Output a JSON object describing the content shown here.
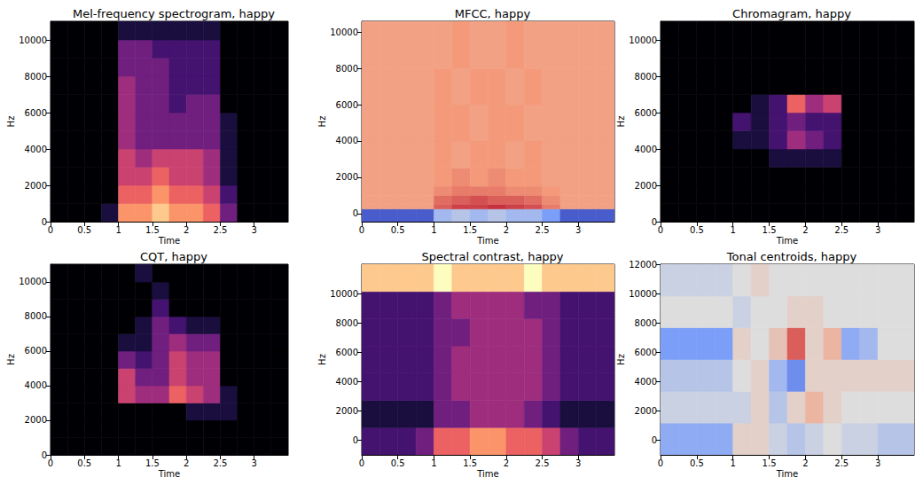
{
  "chart_data": [
    {
      "type": "heatmap",
      "title": "Mel-frequency spectrogram, happy",
      "x_label": "Time",
      "y_label": "Hz",
      "color": "magma",
      "xlim": [
        0,
        3.5
      ],
      "ylim": [
        0,
        11025
      ],
      "xticks": [
        0,
        0.5,
        1,
        1.5,
        2,
        2.5,
        3
      ],
      "yticks": [
        0,
        2000,
        4000,
        6000,
        8000,
        10000
      ],
      "value_range": [
        0,
        9
      ],
      "x_bins": [
        0,
        0.25,
        0.5,
        0.75,
        1,
        1.25,
        1.5,
        1.75,
        2,
        2.25,
        2.5,
        2.75,
        3,
        3.25,
        3.5
      ],
      "y_bins": [
        0,
        1000,
        2000,
        3000,
        4000,
        5000,
        6000,
        7000,
        8000,
        9000,
        10000,
        11025
      ],
      "cells": [
        [
          0,
          0,
          0,
          1,
          7,
          7,
          8,
          7,
          7,
          6,
          3,
          0,
          0,
          0
        ],
        [
          0,
          0,
          0,
          0,
          6,
          6,
          7,
          6,
          6,
          5,
          2,
          0,
          0,
          0
        ],
        [
          0,
          0,
          0,
          0,
          5,
          5,
          6,
          5,
          5,
          4,
          1,
          0,
          0,
          0
        ],
        [
          0,
          0,
          0,
          0,
          5,
          4,
          5,
          5,
          5,
          4,
          1,
          0,
          0,
          0
        ],
        [
          0,
          0,
          0,
          0,
          4,
          3,
          3,
          3,
          3,
          3,
          1,
          0,
          0,
          0
        ],
        [
          0,
          0,
          0,
          0,
          4,
          3,
          3,
          3,
          3,
          3,
          1,
          0,
          0,
          0
        ],
        [
          0,
          0,
          0,
          0,
          4,
          3,
          3,
          2,
          3,
          3,
          0,
          0,
          0,
          0
        ],
        [
          0,
          0,
          0,
          0,
          4,
          3,
          3,
          2,
          2,
          2,
          0,
          0,
          0,
          0
        ],
        [
          0,
          0,
          0,
          0,
          3,
          3,
          3,
          2,
          2,
          2,
          0,
          0,
          0,
          0
        ],
        [
          0,
          0,
          0,
          0,
          3,
          3,
          2,
          2,
          2,
          2,
          0,
          0,
          0,
          0
        ],
        [
          0,
          0,
          0,
          0,
          1,
          1,
          1,
          1,
          1,
          1,
          0,
          0,
          0,
          0
        ]
      ]
    },
    {
      "type": "heatmap",
      "title": "MFCC, happy",
      "x_label": "Time",
      "y_label": "Hz",
      "color": "coolwarm",
      "xlim": [
        0,
        3.5
      ],
      "ylim": [
        -450,
        10600
      ],
      "xticks": [
        0,
        0.5,
        1,
        1.5,
        2,
        2.5,
        3
      ],
      "yticks": [
        0,
        2000,
        4000,
        6000,
        8000,
        10000
      ],
      "value_range": [
        -1,
        1
      ],
      "x_bins": [
        0,
        0.25,
        0.5,
        0.75,
        1,
        1.25,
        1.5,
        1.75,
        2,
        2.25,
        2.5,
        2.75,
        3,
        3.25,
        3.5
      ],
      "y_bins": [
        -450,
        250,
        500,
        1000,
        1500,
        2500,
        4000,
        6000,
        8000,
        10600
      ],
      "cells": [
        [
          -0.9,
          -0.9,
          -0.9,
          -0.9,
          -0.3,
          -0.2,
          -0.3,
          -0.2,
          -0.3,
          -0.3,
          -0.5,
          -0.9,
          -0.9,
          -0.9
        ],
        [
          0.45,
          0.45,
          0.45,
          0.45,
          0.7,
          0.8,
          0.8,
          0.85,
          0.8,
          0.75,
          0.6,
          0.45,
          0.45,
          0.45
        ],
        [
          0.45,
          0.45,
          0.45,
          0.45,
          0.65,
          0.7,
          0.75,
          0.7,
          0.7,
          0.65,
          0.55,
          0.45,
          0.45,
          0.45
        ],
        [
          0.45,
          0.45,
          0.45,
          0.45,
          0.55,
          0.6,
          0.6,
          0.6,
          0.55,
          0.55,
          0.5,
          0.45,
          0.45,
          0.45
        ],
        [
          0.45,
          0.45,
          0.45,
          0.45,
          0.5,
          0.55,
          0.5,
          0.55,
          0.5,
          0.5,
          0.45,
          0.45,
          0.45,
          0.45
        ],
        [
          0.45,
          0.45,
          0.45,
          0.45,
          0.5,
          0.45,
          0.5,
          0.5,
          0.45,
          0.5,
          0.45,
          0.45,
          0.45,
          0.45
        ],
        [
          0.45,
          0.45,
          0.45,
          0.45,
          0.5,
          0.5,
          0.45,
          0.5,
          0.5,
          0.45,
          0.45,
          0.45,
          0.45,
          0.45
        ],
        [
          0.45,
          0.45,
          0.45,
          0.45,
          0.5,
          0.45,
          0.5,
          0.5,
          0.45,
          0.5,
          0.45,
          0.45,
          0.45,
          0.45
        ],
        [
          0.45,
          0.45,
          0.45,
          0.45,
          0.45,
          0.5,
          0.45,
          0.45,
          0.5,
          0.45,
          0.45,
          0.45,
          0.45,
          0.45
        ]
      ]
    },
    {
      "type": "heatmap",
      "title": "Chromagram, happy",
      "x_label": "Time",
      "y_label": "Hz",
      "color": "magma",
      "xlim": [
        0,
        3.5
      ],
      "ylim": [
        0,
        11025
      ],
      "xticks": [
        0,
        0.5,
        1,
        1.5,
        2,
        2.5,
        3
      ],
      "yticks": [
        0,
        2000,
        4000,
        6000,
        8000,
        10000
      ],
      "value_range": [
        0,
        9
      ],
      "x_bins": [
        0,
        0.25,
        0.5,
        0.75,
        1,
        1.25,
        1.5,
        1.75,
        2,
        2.25,
        2.5,
        2.75,
        3,
        3.25,
        3.5
      ],
      "y_bins": [
        0,
        1000,
        2000,
        3000,
        4000,
        5000,
        6000,
        7000,
        8000,
        9000,
        10000,
        11025
      ],
      "cells": [
        [
          0,
          0,
          0,
          0,
          0,
          0,
          0,
          0,
          0,
          0,
          0,
          0,
          0,
          0
        ],
        [
          0,
          0,
          0,
          0,
          0,
          0,
          0,
          0,
          0,
          0,
          0,
          0,
          0,
          0
        ],
        [
          0,
          0,
          0,
          0,
          0,
          0,
          0,
          0,
          0,
          0,
          0,
          0,
          0,
          0
        ],
        [
          0,
          0,
          0,
          0,
          0,
          0,
          1,
          1,
          1,
          1,
          0,
          0,
          0,
          0
        ],
        [
          0,
          0,
          0,
          0,
          1,
          1,
          2,
          4,
          3,
          2,
          0,
          0,
          0,
          0
        ],
        [
          0,
          0,
          0,
          0,
          2,
          1,
          2,
          3,
          2,
          2,
          0,
          0,
          0,
          0
        ],
        [
          0,
          0,
          0,
          0,
          0,
          1,
          2,
          6,
          4,
          5,
          0,
          0,
          0,
          0
        ],
        [
          0,
          0,
          0,
          0,
          0,
          0,
          0,
          0,
          0,
          0,
          0,
          0,
          0,
          0
        ],
        [
          0,
          0,
          0,
          0,
          0,
          0,
          0,
          0,
          0,
          0,
          0,
          0,
          0,
          0
        ],
        [
          0,
          0,
          0,
          0,
          0,
          0,
          0,
          0,
          0,
          0,
          0,
          0,
          0,
          0
        ],
        [
          0,
          0,
          0,
          0,
          0,
          0,
          0,
          0,
          0,
          0,
          0,
          0,
          0,
          0
        ]
      ]
    },
    {
      "type": "heatmap",
      "title": "CQT, happy",
      "x_label": "Time",
      "y_label": "Hz",
      "color": "magma",
      "xlim": [
        0,
        3.5
      ],
      "ylim": [
        0,
        11025
      ],
      "xticks": [
        0,
        0.5,
        1,
        1.5,
        2,
        2.5,
        3
      ],
      "yticks": [
        0,
        2000,
        4000,
        6000,
        8000,
        10000
      ],
      "value_range": [
        0,
        9
      ],
      "x_bins": [
        0,
        0.25,
        0.5,
        0.75,
        1,
        1.25,
        1.5,
        1.75,
        2,
        2.25,
        2.5,
        2.75,
        3,
        3.25,
        3.5
      ],
      "y_bins": [
        0,
        1000,
        2000,
        3000,
        4000,
        5000,
        6000,
        7000,
        8000,
        9000,
        10000,
        11025
      ],
      "cells": [
        [
          0,
          0,
          0,
          0,
          0,
          0,
          0,
          0,
          0,
          0,
          0,
          0,
          0,
          0
        ],
        [
          0,
          0,
          0,
          0,
          0,
          0,
          0,
          0,
          0,
          0,
          0,
          0,
          0,
          0
        ],
        [
          0,
          0,
          0,
          0,
          0,
          0,
          0,
          0,
          1,
          1,
          1,
          0,
          0,
          0
        ],
        [
          0,
          0,
          0,
          0,
          5,
          4,
          4,
          6,
          5,
          4,
          1,
          0,
          0,
          0
        ],
        [
          0,
          0,
          0,
          0,
          5,
          3,
          3,
          5,
          4,
          4,
          0,
          0,
          0,
          0
        ],
        [
          0,
          0,
          0,
          0,
          3,
          2,
          3,
          5,
          4,
          4,
          0,
          0,
          0,
          0
        ],
        [
          0,
          0,
          0,
          0,
          1,
          1,
          3,
          4,
          3,
          3,
          0,
          0,
          0,
          0
        ],
        [
          0,
          0,
          0,
          0,
          0,
          1,
          3,
          2,
          1,
          1,
          0,
          0,
          0,
          0
        ],
        [
          0,
          0,
          0,
          0,
          0,
          0,
          2,
          0,
          0,
          0,
          0,
          0,
          0,
          0
        ],
        [
          0,
          0,
          0,
          0,
          0,
          0,
          1,
          0,
          0,
          0,
          0,
          0,
          0,
          0
        ],
        [
          0,
          0,
          0,
          0,
          0,
          1,
          0,
          0,
          0,
          0,
          0,
          0,
          0,
          0
        ]
      ]
    },
    {
      "type": "heatmap",
      "title": "Spectral contrast, happy",
      "x_label": "Time",
      "y_label": "Hz",
      "color": "magma",
      "xlim": [
        0,
        3.5
      ],
      "ylim": [
        -1000,
        12000
      ],
      "xticks": [
        0,
        0.5,
        1,
        1.5,
        2,
        2.5,
        3
      ],
      "yticks": [
        0,
        2000,
        4000,
        6000,
        8000,
        10000
      ],
      "value_range": [
        0,
        9
      ],
      "x_bins": [
        0,
        0.25,
        0.5,
        0.75,
        1,
        1.25,
        1.5,
        1.75,
        2,
        2.25,
        2.5,
        2.75,
        3,
        3.25,
        3.5
      ],
      "y_bins": [
        -1000,
        860,
        2710,
        4570,
        6430,
        8290,
        10140,
        12000
      ],
      "cells": [
        [
          2,
          2,
          2,
          3,
          6,
          6,
          7,
          7,
          6,
          6,
          5,
          3,
          2,
          2
        ],
        [
          1,
          1,
          1,
          1,
          3,
          3,
          4,
          4,
          4,
          3,
          2,
          1,
          1,
          1
        ],
        [
          2,
          2,
          2,
          2,
          3,
          4,
          4,
          4,
          4,
          4,
          3,
          2,
          2,
          2
        ],
        [
          2,
          2,
          2,
          2,
          3,
          4,
          4,
          4,
          4,
          4,
          3,
          2,
          2,
          2
        ],
        [
          2,
          2,
          2,
          2,
          3,
          3,
          4,
          4,
          4,
          4,
          3,
          2,
          2,
          2
        ],
        [
          2,
          2,
          2,
          2,
          3,
          4,
          4,
          4,
          4,
          3,
          3,
          2,
          2,
          2
        ],
        [
          8,
          8,
          8,
          8,
          9,
          8,
          8,
          8,
          8,
          9,
          8,
          8,
          8,
          8
        ]
      ]
    },
    {
      "type": "heatmap",
      "title": "Tonal centroids, happy",
      "x_label": "Time",
      "y_label": "Hz",
      "color": "coolwarm",
      "xlim": [
        0,
        3.5
      ],
      "ylim": [
        -1000,
        12000
      ],
      "xticks": [
        0,
        0.5,
        1,
        1.5,
        2,
        2.5,
        3
      ],
      "yticks": [
        0,
        2000,
        4000,
        6000,
        8000,
        10000,
        12000
      ],
      "value_range": [
        -1,
        1
      ],
      "x_bins": [
        0,
        0.25,
        0.5,
        0.75,
        1,
        1.25,
        1.5,
        1.75,
        2,
        2.25,
        2.5,
        2.75,
        3,
        3.25,
        3.5
      ],
      "y_bins": [
        -1000,
        1170,
        3330,
        5500,
        7670,
        9830,
        12000
      ],
      "cells": [
        [
          -0.4,
          -0.4,
          -0.4,
          -0.4,
          0.1,
          0.1,
          -0.1,
          -0.2,
          -0.1,
          0,
          -0.1,
          -0.1,
          -0.2,
          -0.2
        ],
        [
          -0.1,
          -0.1,
          -0.1,
          -0.1,
          -0.1,
          0.1,
          -0.2,
          0.1,
          0.3,
          0.1,
          0,
          0,
          0,
          0
        ],
        [
          -0.2,
          -0.2,
          -0.2,
          -0.2,
          0,
          0.1,
          -0.3,
          -0.6,
          0.1,
          0.1,
          0.1,
          0.1,
          0.1,
          0.1
        ],
        [
          -0.5,
          -0.5,
          -0.5,
          -0.5,
          0.1,
          0,
          0.2,
          0.7,
          0.1,
          0.3,
          -0.4,
          -0.3,
          0,
          0
        ],
        [
          0,
          0,
          0,
          0,
          -0.1,
          0,
          0,
          0.1,
          0.1,
          0,
          0,
          0,
          0,
          0
        ],
        [
          -0.1,
          -0.1,
          -0.1,
          -0.1,
          0,
          0.1,
          0,
          0,
          0,
          0,
          0,
          0,
          0,
          0
        ]
      ]
    }
  ]
}
